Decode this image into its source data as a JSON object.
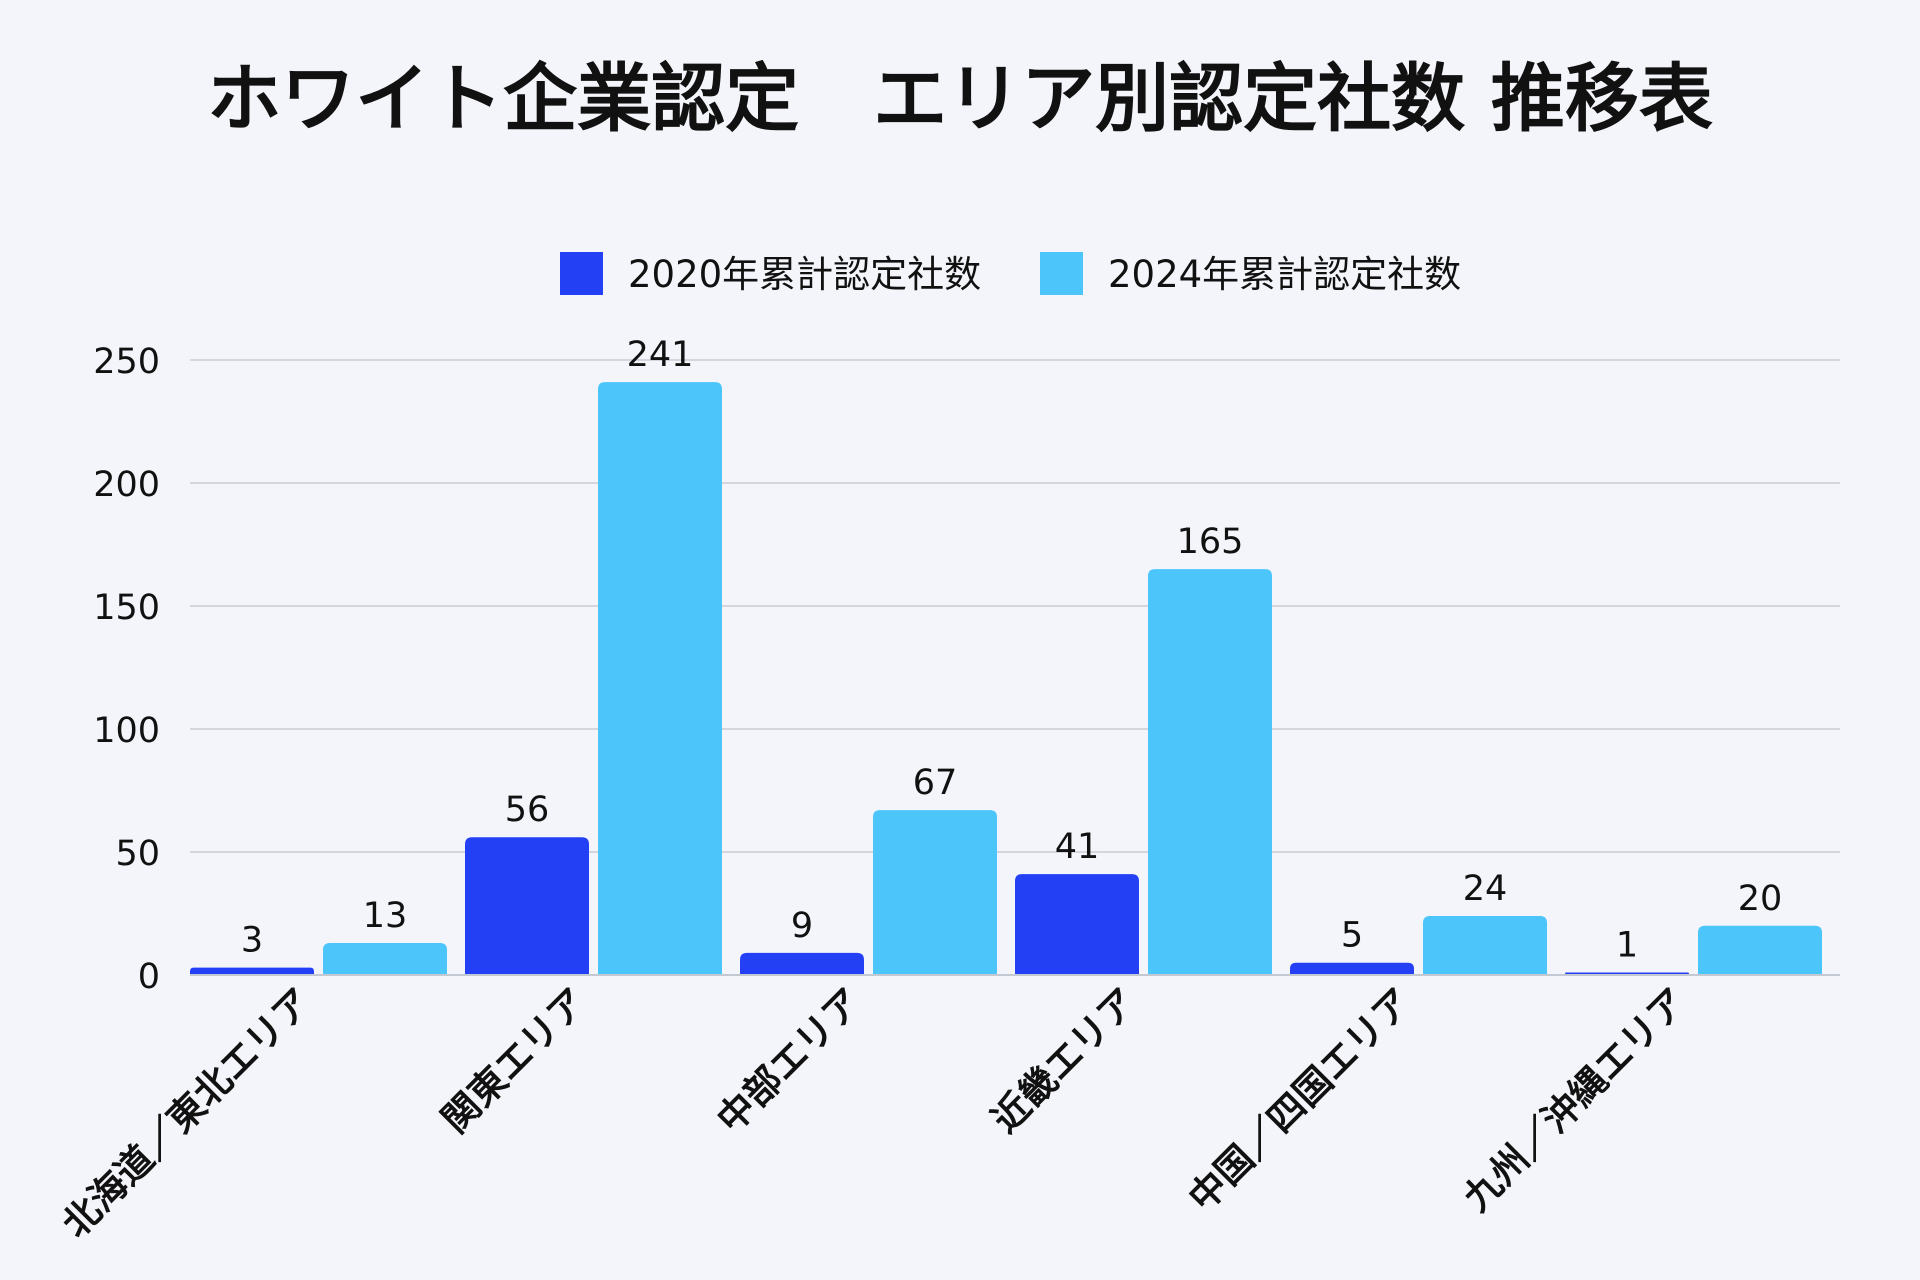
{
  "chart_data": {
    "type": "bar",
    "title": "ホワイト企業認定　エリア別認定社数 推移表",
    "xlabel": "",
    "ylabel": "",
    "ylim": [
      0,
      250
    ],
    "yticks": [
      0,
      50,
      100,
      150,
      200,
      250
    ],
    "grid": true,
    "legend_position": "top-center",
    "categories": [
      "北海道／東北エリア",
      "関東エリア",
      "中部エリア",
      "近畿エリア",
      "中国／四国エリア",
      "九州／沖縄エリア"
    ],
    "series": [
      {
        "name": "2020年累計認定社数",
        "color": "#2340f5",
        "values": [
          3,
          56,
          9,
          41,
          5,
          1
        ]
      },
      {
        "name": "2024年累計認定社数",
        "color": "#4cc5fb",
        "values": [
          13,
          241,
          67,
          165,
          24,
          20
        ]
      }
    ]
  }
}
